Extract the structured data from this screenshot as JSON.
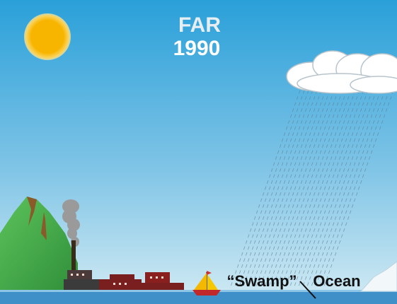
{
  "title": "FAR",
  "year": "1990",
  "label_quoted": "“Swamp”",
  "label_word": "Ocean"
}
